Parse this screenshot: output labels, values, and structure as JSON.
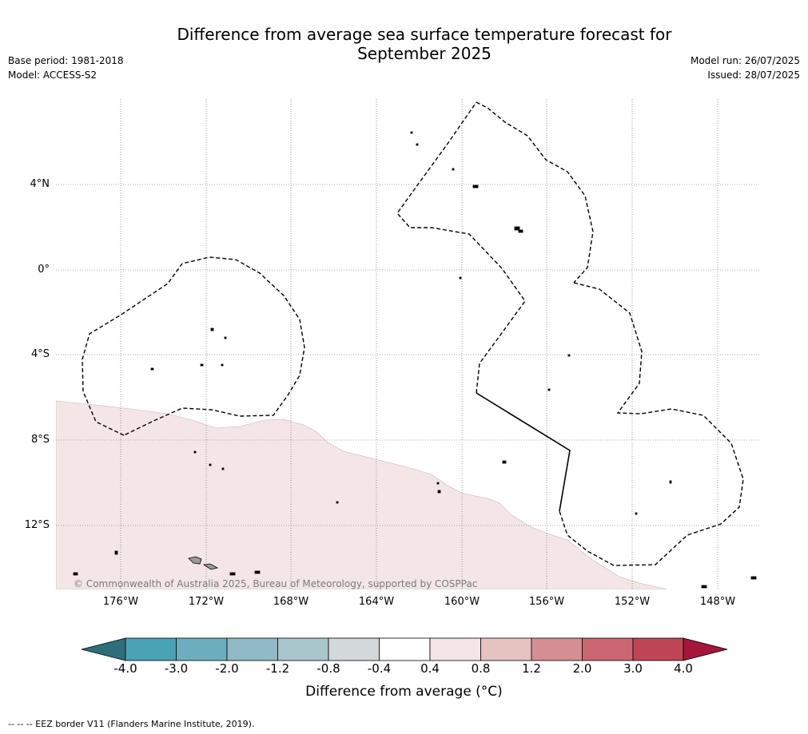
{
  "title": {
    "line1": "Difference from average sea surface temperature forecast for",
    "line2": "September 2025"
  },
  "meta": {
    "base_period": "Base period: 1981-2018",
    "model": "Model: ACCESS-S2",
    "model_run": "Model run: 26/07/2025",
    "issued": "Issued: 28/07/2025"
  },
  "map": {
    "lat_labels": [
      "4°N",
      "0°",
      "4°S",
      "8°S",
      "12°S"
    ],
    "lon_labels": [
      "176°W",
      "172°W",
      "168°W",
      "164°W",
      "160°W",
      "156°W",
      "152°W",
      "148°W"
    ],
    "copyright": "© Commonwealth of Australia 2025, Bureau of Meteorology, supported by COSPPac",
    "colors": {
      "anomaly_0_4_to_0_8": "#f4e6e6",
      "land": "#9a9a9a",
      "eez_border": "#000000",
      "gridline": "#555555"
    }
  },
  "colorbar": {
    "ticks": [
      "-4.0",
      "-3.0",
      "-2.0",
      "-1.2",
      "-0.8",
      "-0.4",
      "0.4",
      "0.8",
      "1.2",
      "2.0",
      "3.0",
      "4.0"
    ],
    "colors": [
      "#2e6e7c",
      "#4aa3b5",
      "#6caebd",
      "#8fbac6",
      "#aac6cd",
      "#d3d8da",
      "#ffffff",
      "#f4e6e6",
      "#e6c3c1",
      "#d58e94",
      "#c96672",
      "#bf4556",
      "#a6163a"
    ],
    "label": "Difference from average (°C)"
  },
  "footer": "--  --  -- EEZ border V11 (Flanders Marine Institute, 2019)."
}
